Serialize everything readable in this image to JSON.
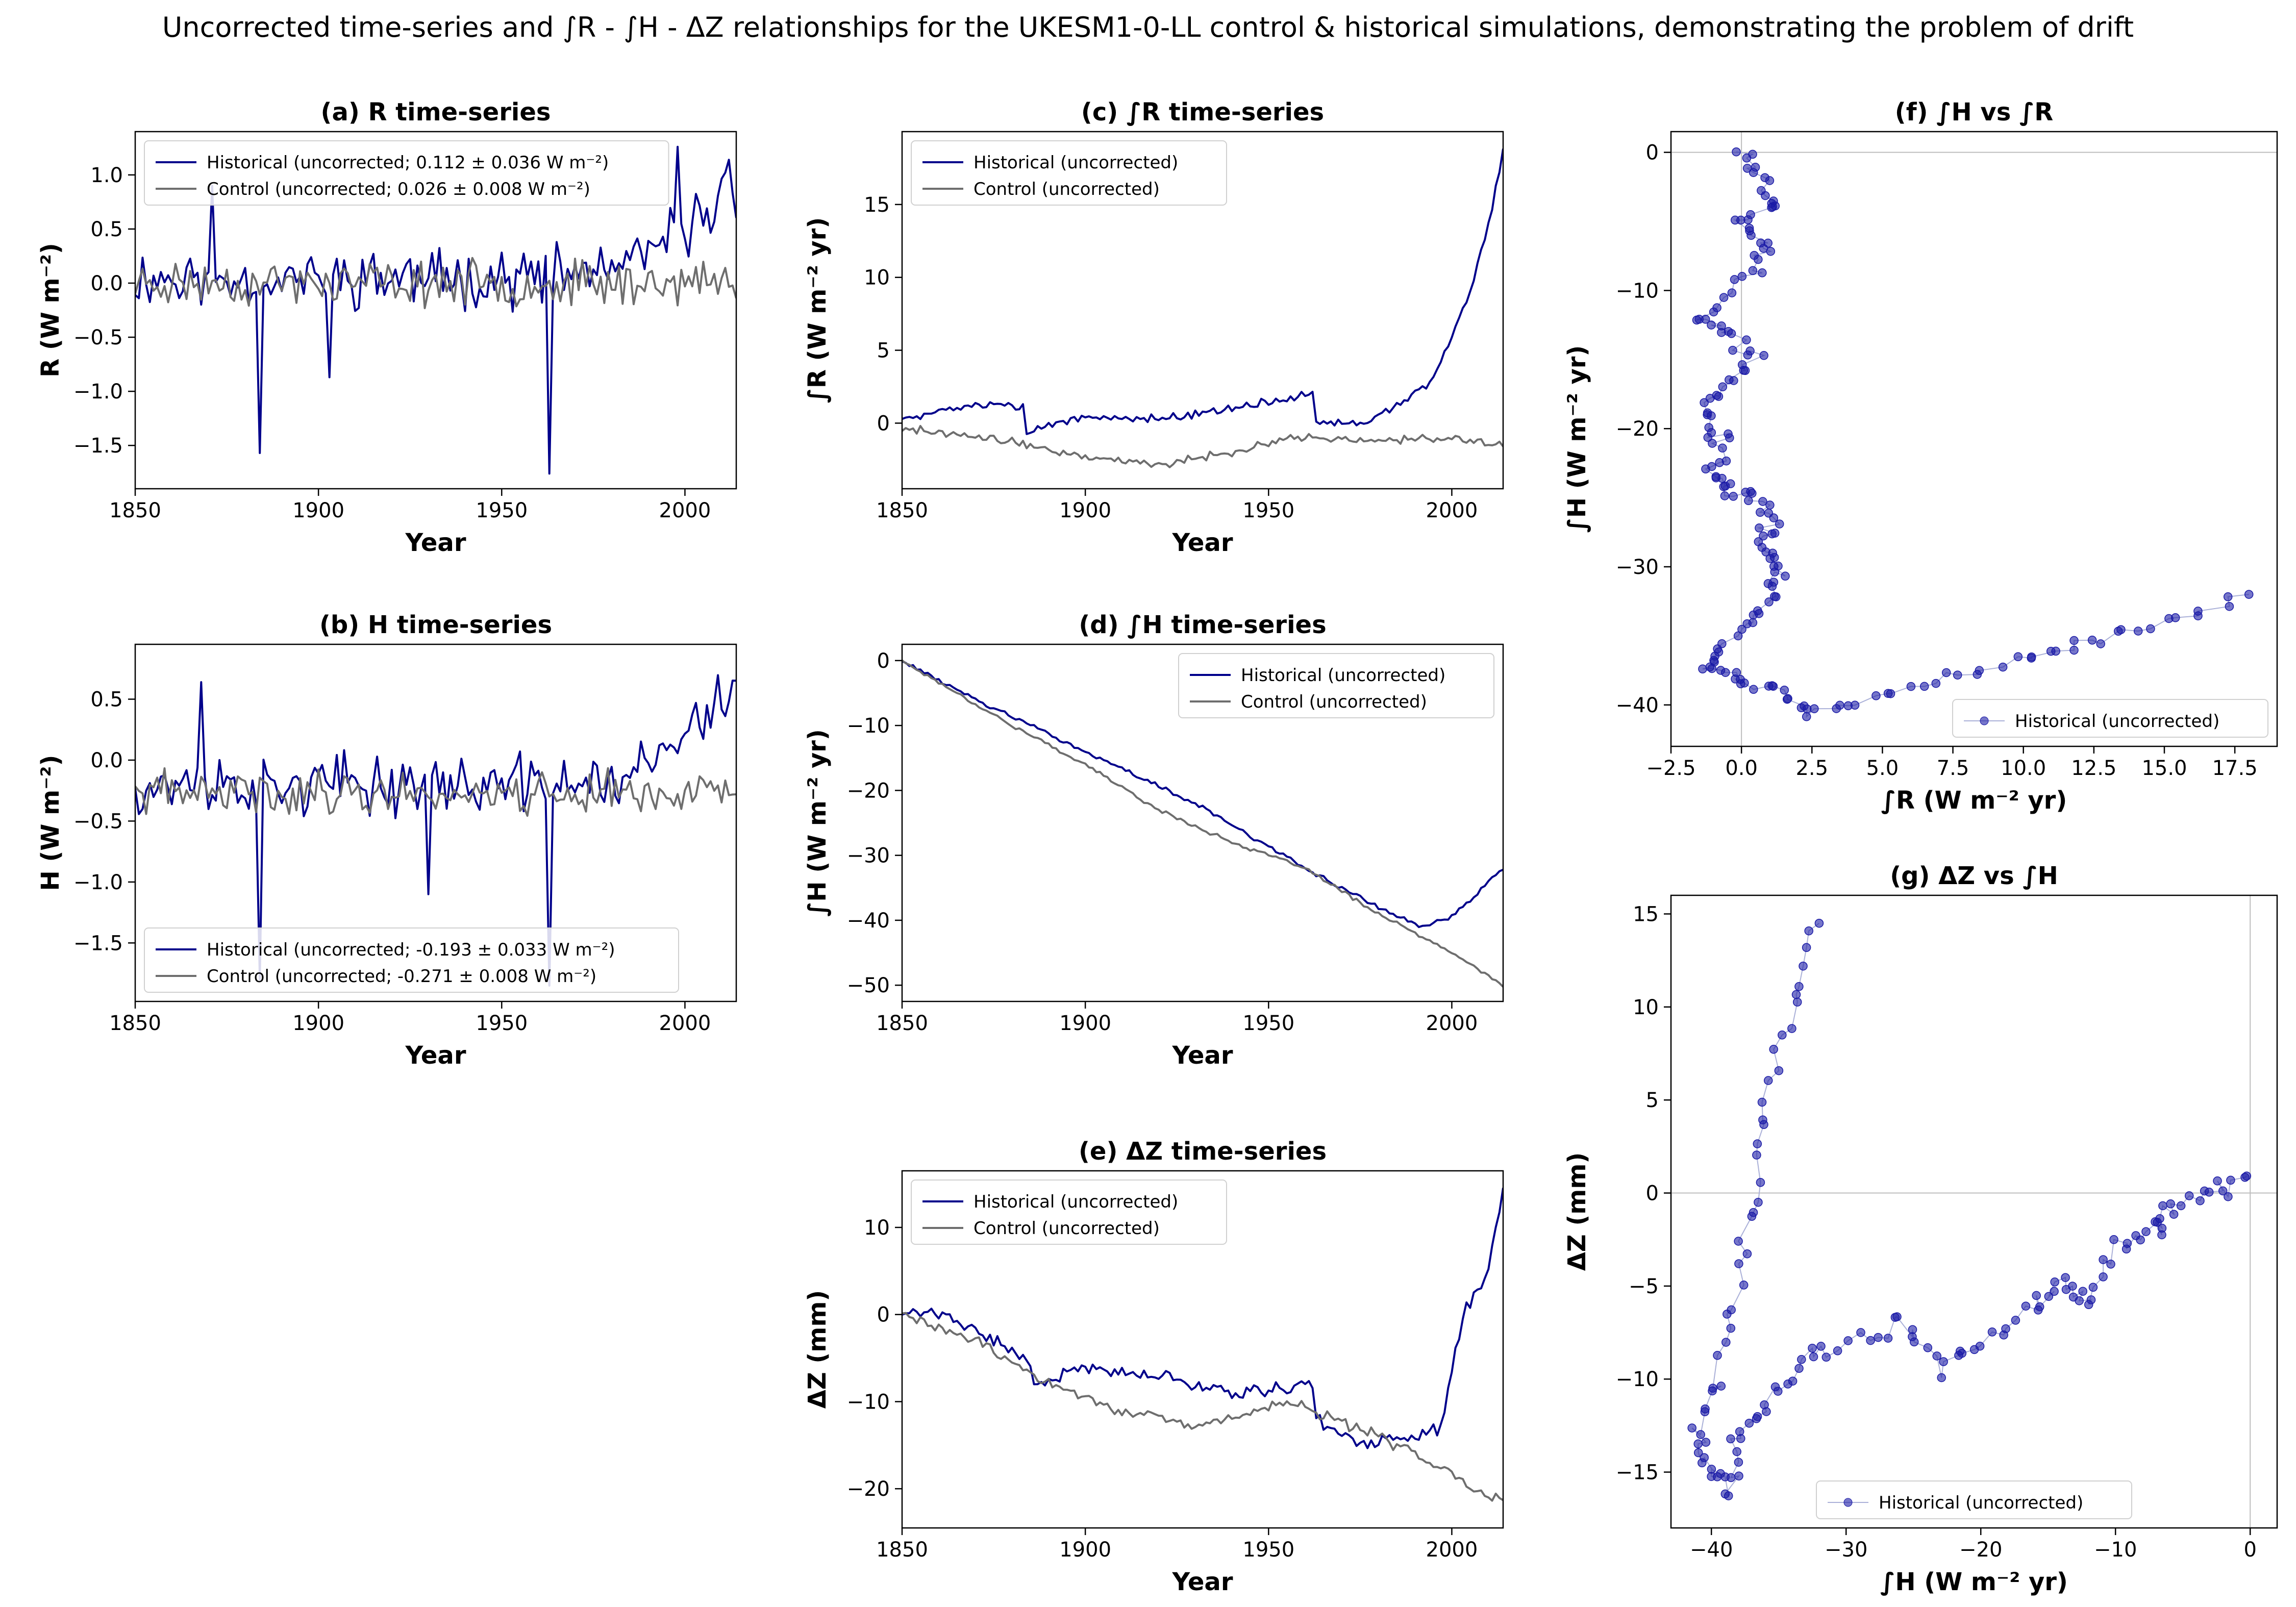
{
  "figure": {
    "suptitle": "Uncorrected time-series and ∫R - ∫H - ΔZ relationships for the UKESM1-0-LL control & historical simulations, demonstrating the problem of drift"
  },
  "colors": {
    "historical": "#00008b",
    "control": "#6e6e6e",
    "scatter": "#1a1aa6"
  },
  "chart_data": [
    {
      "id": "a",
      "type": "line",
      "title": "(a) R time-series",
      "xlabel": "Year",
      "ylabel": "R (W m⁻²)",
      "xlim": [
        1850,
        2014
      ],
      "ylim": [
        -1.9,
        1.4
      ],
      "xticks": [
        1850,
        1900,
        1950,
        2000
      ],
      "yticks": [
        -1.5,
        -1.0,
        -0.5,
        0.0,
        0.5,
        1.0
      ],
      "legend_loc": "upper-left",
      "series": [
        {
          "name": "Historical (uncorrected; 0.112 ± 0.036 W m⁻²)",
          "kind": "historical",
          "gen": {
            "base": [
              [
                1850,
                0.05
              ],
              [
                1960,
                0.05
              ],
              [
                1985,
                0.15
              ],
              [
                2000,
                0.5
              ],
              [
                2014,
                0.9
              ]
            ],
            "amp": 0.33,
            "seed": 11
          },
          "spikes": [
            [
              1871,
              0.9
            ],
            [
              1884,
              -1.57
            ],
            [
              1903,
              -0.87
            ],
            [
              1963,
              -1.76
            ],
            [
              1998,
              1.26
            ],
            [
              2012,
              1.14
            ]
          ]
        },
        {
          "name": "Control (uncorrected; 0.026 ± 0.008 W m⁻²)",
          "kind": "control",
          "gen": {
            "base": [
              [
                1850,
                0.0
              ],
              [
                2014,
                0.0
              ]
            ],
            "amp": 0.25,
            "seed": 23
          },
          "spikes": []
        }
      ]
    },
    {
      "id": "b",
      "type": "line",
      "title": "(b) H time-series",
      "xlabel": "Year",
      "ylabel": "H (W m⁻²)",
      "xlim": [
        1850,
        2014
      ],
      "ylim": [
        -1.98,
        0.95
      ],
      "xticks": [
        1850,
        1900,
        1950,
        2000
      ],
      "yticks": [
        -1.5,
        -1.0,
        -0.5,
        0.0,
        0.5
      ],
      "legend_loc": "lower-left",
      "series": [
        {
          "name": "Historical (uncorrected; -0.193 ± 0.033 W m⁻²)",
          "kind": "historical",
          "gen": {
            "base": [
              [
                1850,
                -0.2
              ],
              [
                1960,
                -0.2
              ],
              [
                1985,
                -0.15
              ],
              [
                2000,
                0.2
              ],
              [
                2014,
                0.6
              ]
            ],
            "amp": 0.3,
            "seed": 37
          },
          "spikes": [
            [
              1884,
              -1.8
            ],
            [
              1963,
              -1.85
            ],
            [
              1868,
              0.64
            ],
            [
              1930,
              -1.1
            ]
          ]
        },
        {
          "name": "Control (uncorrected; -0.271 ± 0.008 W m⁻²)",
          "kind": "control",
          "gen": {
            "base": [
              [
                1850,
                -0.27
              ],
              [
                2014,
                -0.27
              ]
            ],
            "amp": 0.22,
            "seed": 41
          },
          "spikes": []
        }
      ]
    },
    {
      "id": "c",
      "type": "line",
      "title": "(c) ∫R time-series",
      "xlabel": "Year",
      "ylabel": "∫R (W m⁻² yr)",
      "xlim": [
        1850,
        2014
      ],
      "ylim": [
        -4.5,
        20
      ],
      "xticks": [
        1850,
        1900,
        1950,
        2000
      ],
      "yticks": [
        0,
        5,
        10,
        15
      ],
      "legend_loc": "upper-left",
      "series": [
        {
          "name": "Historical (uncorrected)",
          "kind": "historical",
          "gen": {
            "base": [
              [
                1850,
                0.3
              ],
              [
                1860,
                0.8
              ],
              [
                1876,
                1.5
              ],
              [
                1883,
                1.0
              ],
              [
                1884,
                -0.6
              ],
              [
                1900,
                0.5
              ],
              [
                1920,
                0.3
              ],
              [
                1940,
                1.0
              ],
              [
                1962,
                2.0
              ],
              [
                1963,
                0.0
              ],
              [
                1975,
                0.0
              ],
              [
                1985,
                1.2
              ],
              [
                1995,
                3.0
              ],
              [
                2005,
                9.0
              ],
              [
                2010,
                13.5
              ],
              [
                2014,
                18.5
              ]
            ],
            "amp": 0.35,
            "seed": 5
          },
          "spikes": []
        },
        {
          "name": "Control (uncorrected)",
          "kind": "control",
          "gen": {
            "base": [
              [
                1850,
                -0.3
              ],
              [
                1880,
                -1.3
              ],
              [
                1900,
                -2.3
              ],
              [
                1920,
                -2.8
              ],
              [
                1940,
                -2.0
              ],
              [
                1955,
                -1.0
              ],
              [
                1980,
                -1.2
              ],
              [
                2000,
                -1.0
              ],
              [
                2014,
                -1.5
              ]
            ],
            "amp": 0.35,
            "seed": 9
          },
          "spikes": []
        }
      ]
    },
    {
      "id": "d",
      "type": "line",
      "title": "(d) ∫H time-series",
      "xlabel": "Year",
      "ylabel": "∫H (W m⁻² yr)",
      "xlim": [
        1850,
        2014
      ],
      "ylim": [
        -52.5,
        2.5
      ],
      "xticks": [
        1850,
        1900,
        1950,
        2000
      ],
      "yticks": [
        -50,
        -40,
        -30,
        -20,
        -10,
        0
      ],
      "legend_loc": "upper-right",
      "series": [
        {
          "name": "Historical (uncorrected)",
          "kind": "historical",
          "gen": {
            "base": [
              [
                1850,
                0
              ],
              [
                1870,
                -6
              ],
              [
                1900,
                -14
              ],
              [
                1930,
                -22
              ],
              [
                1960,
                -32
              ],
              [
                1980,
                -38
              ],
              [
                1992,
                -41
              ],
              [
                2000,
                -39.5
              ],
              [
                2014,
                -32
              ]
            ],
            "amp": 0.4,
            "seed": 13
          },
          "spikes": []
        },
        {
          "name": "Control (uncorrected)",
          "kind": "control",
          "gen": {
            "base": [
              [
                1850,
                0
              ],
              [
                1880,
                -10
              ],
              [
                1900,
                -16
              ],
              [
                1920,
                -23
              ],
              [
                1940,
                -28
              ],
              [
                1960,
                -32
              ],
              [
                1980,
                -39
              ],
              [
                2000,
                -45
              ],
              [
                2014,
                -50
              ]
            ],
            "amp": 0.35,
            "seed": 17
          },
          "spikes": []
        }
      ]
    },
    {
      "id": "e",
      "type": "line",
      "title": "(e) ΔZ time-series",
      "xlabel": "Year",
      "ylabel": "ΔZ (mm)",
      "xlim": [
        1850,
        2014
      ],
      "ylim": [
        -24.5,
        16.5
      ],
      "xticks": [
        1850,
        1900,
        1950,
        2000
      ],
      "yticks": [
        -20,
        -10,
        0,
        10
      ],
      "legend_loc": "upper-left",
      "series": [
        {
          "name": "Historical (uncorrected)",
          "kind": "historical",
          "gen": {
            "base": [
              [
                1850,
                0.5
              ],
              [
                1862,
                0
              ],
              [
                1875,
                -3
              ],
              [
                1884,
                -5
              ],
              [
                1886,
                -8
              ],
              [
                1900,
                -6
              ],
              [
                1920,
                -7
              ],
              [
                1940,
                -9
              ],
              [
                1962,
                -8
              ],
              [
                1963,
                -12
              ],
              [
                1975,
                -15
              ],
              [
                1990,
                -14
              ],
              [
                1997,
                -13
              ],
              [
                2003,
                0
              ],
              [
                2010,
                5
              ],
              [
                2014,
                14.5
              ]
            ],
            "amp": 0.9,
            "seed": 21
          },
          "spikes": []
        },
        {
          "name": "Control (uncorrected)",
          "kind": "control",
          "gen": {
            "base": [
              [
                1850,
                0
              ],
              [
                1870,
                -3
              ],
              [
                1890,
                -8
              ],
              [
                1910,
                -11
              ],
              [
                1930,
                -13
              ],
              [
                1955,
                -10
              ],
              [
                1980,
                -14
              ],
              [
                2000,
                -18
              ],
              [
                2010,
                -21
              ],
              [
                2014,
                -21
              ]
            ],
            "amp": 0.8,
            "seed": 29
          },
          "spikes": []
        }
      ]
    },
    {
      "id": "f",
      "type": "scatter",
      "title": "(f) ∫H vs ∫R",
      "xlabel": "∫R (W m⁻² yr)",
      "ylabel": "∫H (W m⁻² yr)",
      "xlim": [
        -2.5,
        19
      ],
      "ylim": [
        -43,
        1.5
      ],
      "xticks": [
        -2.5,
        0.0,
        2.5,
        5.0,
        7.5,
        10.0,
        12.5,
        15.0,
        17.5
      ],
      "yticks": [
        -40,
        -30,
        -20,
        -10,
        0
      ],
      "zero_lines": true,
      "legend_loc": "lower-right",
      "series": [
        {
          "name": "Historical (uncorrected)",
          "kind": "scatter",
          "path": [
            [
              0,
              0
            ],
            [
              0.8,
              -2
            ],
            [
              1.2,
              -4
            ],
            [
              0,
              -5
            ],
            [
              1.0,
              -7
            ],
            [
              0.3,
              -9
            ],
            [
              -1.5,
              -12
            ],
            [
              -0.5,
              -13
            ],
            [
              0.5,
              -15
            ],
            [
              -0.8,
              -17
            ],
            [
              -1.2,
              -19
            ],
            [
              -0.7,
              -21
            ],
            [
              -1.0,
              -23
            ],
            [
              -0.5,
              -24.5
            ],
            [
              0.5,
              -25
            ],
            [
              1.0,
              -27
            ],
            [
              0.7,
              -28.5
            ],
            [
              1.3,
              -30
            ],
            [
              1.2,
              -32
            ],
            [
              0.2,
              -34
            ],
            [
              -0.8,
              -36
            ],
            [
              -1.2,
              -37.5
            ],
            [
              0.2,
              -38.5
            ],
            [
              1.5,
              -39
            ],
            [
              2.5,
              -40.8
            ],
            [
              4.5,
              -39.5
            ],
            [
              7.5,
              -38
            ],
            [
              10,
              -36.5
            ],
            [
              12.5,
              -35.5
            ],
            [
              15,
              -34
            ],
            [
              18,
              -32
            ]
          ],
          "noise": 0.35,
          "seed": 3
        }
      ]
    },
    {
      "id": "g",
      "type": "scatter",
      "title": "(g) ΔZ vs ∫H",
      "xlabel": "∫H (W m⁻² yr)",
      "ylabel": "ΔZ (mm)",
      "xlim": [
        -43,
        2
      ],
      "ylim": [
        -18,
        16
      ],
      "xticks": [
        -40,
        -30,
        -20,
        -10,
        0
      ],
      "yticks": [
        -15,
        -10,
        -5,
        0,
        5,
        10,
        15
      ],
      "zero_lines": true,
      "legend_loc": "lower-center",
      "series": [
        {
          "name": "Historical (uncorrected)",
          "kind": "scatter",
          "path": [
            [
              0,
              0.5
            ],
            [
              -3,
              0
            ],
            [
              -6,
              -1
            ],
            [
              -7,
              -2
            ],
            [
              -10,
              -3
            ],
            [
              -12,
              -6
            ],
            [
              -14,
              -5
            ],
            [
              -16,
              -6
            ],
            [
              -20,
              -8
            ],
            [
              -23,
              -9.5
            ],
            [
              -26,
              -7
            ],
            [
              -30,
              -8
            ],
            [
              -33,
              -9
            ],
            [
              -36,
              -11
            ],
            [
              -38,
              -13
            ],
            [
              -38.5,
              -16
            ],
            [
              -40,
              -15
            ],
            [
              -41,
              -13
            ],
            [
              -39.5,
              -10
            ],
            [
              -38,
              -5
            ],
            [
              -37,
              0
            ],
            [
              -36,
              5
            ],
            [
              -34,
              10
            ],
            [
              -32,
              14.5
            ]
          ],
          "noise": 0.5,
          "seed": 7
        }
      ]
    }
  ]
}
